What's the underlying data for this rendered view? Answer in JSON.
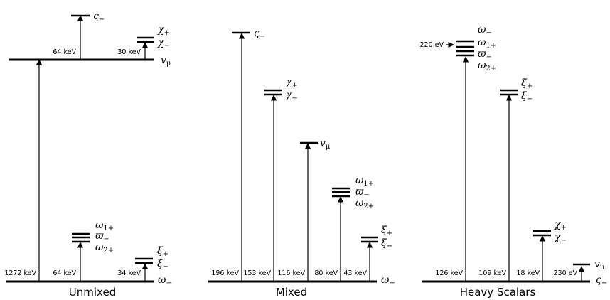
{
  "panels": [
    {
      "title": "Unmixed",
      "levels": [
        {
          "labels": [
            {
              "base": "ω",
              "sub": "−"
            }
          ]
        },
        {
          "labels": [
            {
              "base": "v",
              "sub": "μ"
            }
          ]
        },
        {
          "labels": [
            {
              "base": "ς",
              "sub": "−"
            }
          ]
        },
        {
          "labels": [
            {
              "base": "χ",
              "sub": "+"
            },
            {
              "base": "χ",
              "sub": "−"
            }
          ]
        },
        {
          "labels": [
            {
              "base": "ω",
              "sub": "1+"
            },
            {
              "base": "ϖ",
              "sub": "−"
            },
            {
              "base": "ω",
              "sub": "2+"
            }
          ]
        },
        {
          "labels": [
            {
              "base": "ξ",
              "sub": "+"
            },
            {
              "base": "ξ",
              "sub": "−"
            }
          ]
        }
      ],
      "transitions": [
        {
          "label": "1272 keV"
        },
        {
          "label": "64 keV"
        },
        {
          "label": "30 keV"
        },
        {
          "label": "64 keV"
        },
        {
          "label": "34 keV"
        }
      ]
    },
    {
      "title": "Mixed",
      "levels": [
        {
          "labels": [
            {
              "base": "ω",
              "sub": "−"
            }
          ]
        },
        {
          "labels": [
            {
              "base": "ς",
              "sub": "−"
            }
          ]
        },
        {
          "labels": [
            {
              "base": "χ",
              "sub": "+"
            },
            {
              "base": "χ",
              "sub": "−"
            }
          ]
        },
        {
          "labels": [
            {
              "base": "v",
              "sub": "μ"
            }
          ]
        },
        {
          "labels": [
            {
              "base": "ω",
              "sub": "1+"
            },
            {
              "base": "ϖ",
              "sub": "−"
            },
            {
              "base": "ω",
              "sub": "2+"
            }
          ]
        },
        {
          "labels": [
            {
              "base": "ξ",
              "sub": "+"
            },
            {
              "base": "ξ",
              "sub": "−"
            }
          ]
        }
      ],
      "transitions": [
        {
          "label": "196 keV"
        },
        {
          "label": "153 keV"
        },
        {
          "label": "116 keV"
        },
        {
          "label": "80 keV"
        },
        {
          "label": "43 keV"
        }
      ]
    },
    {
      "title": "Heavy Scalars",
      "annotation": "220 eV",
      "levels": [
        {
          "labels": [
            {
              "base": "ς",
              "sub": "−"
            }
          ]
        },
        {
          "labels": [
            {
              "base": "ω",
              "sub": "−"
            },
            {
              "base": "ω",
              "sub": "1+"
            },
            {
              "base": "ϖ",
              "sub": "−"
            },
            {
              "base": "ω",
              "sub": "2+"
            }
          ]
        },
        {
          "labels": [
            {
              "base": "ξ",
              "sub": "+"
            },
            {
              "base": "ξ",
              "sub": "−"
            }
          ]
        },
        {
          "labels": [
            {
              "base": "χ",
              "sub": "+"
            },
            {
              "base": "χ",
              "sub": "−"
            }
          ]
        },
        {
          "labels": [
            {
              "base": "v",
              "sub": "μ"
            }
          ]
        }
      ],
      "transitions": [
        {
          "label": "126 keV"
        },
        {
          "label": "109 keV"
        },
        {
          "label": "18 keV"
        },
        {
          "label": "230 eV"
        }
      ]
    }
  ]
}
